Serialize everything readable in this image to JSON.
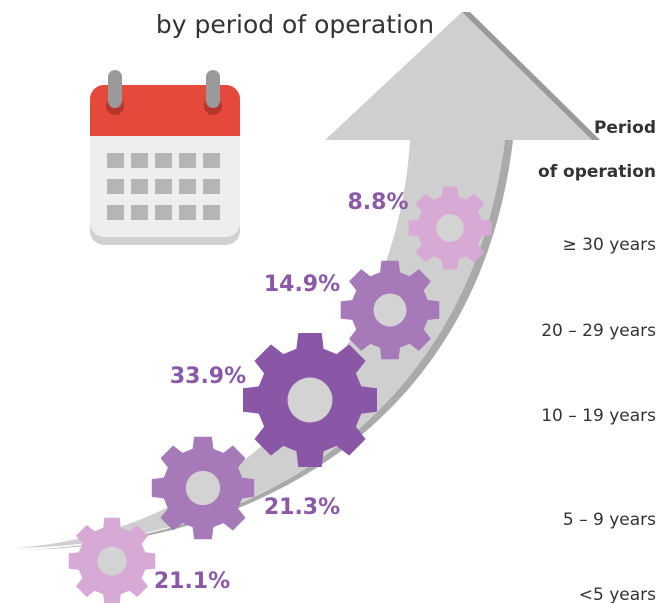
{
  "subtitle": "by period of operation",
  "legend": {
    "title_line1": "Period",
    "title_line2": "of operation"
  },
  "segments": [
    {
      "period": "≥ 30 years",
      "share": "8.8%"
    },
    {
      "period": "20 – 29 years",
      "share": "14.9%"
    },
    {
      "period": "10 – 19 years",
      "share": "33.9%"
    },
    {
      "period": "5 – 9 years",
      "share": "21.3%"
    },
    {
      "period": "<5 years",
      "share": "21.1%"
    }
  ]
}
